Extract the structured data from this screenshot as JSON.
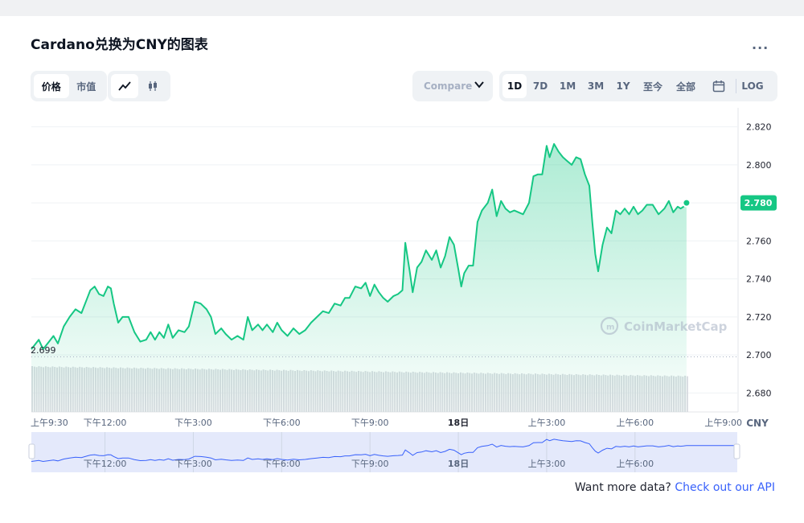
{
  "title": "Cardano兑换为CNY的图表",
  "more_label": "...",
  "metric_tabs": [
    {
      "label": "价格",
      "active": true
    },
    {
      "label": "市值",
      "active": false
    }
  ],
  "chart_type_buttons": [
    {
      "icon": "line-chart-icon",
      "active": true
    },
    {
      "icon": "candlestick-icon",
      "active": false
    }
  ],
  "compare_label": "Compare",
  "range_tabs": [
    {
      "label": "1D",
      "active": true
    },
    {
      "label": "7D",
      "active": false
    },
    {
      "label": "1M",
      "active": false
    },
    {
      "label": "3M",
      "active": false
    },
    {
      "label": "1Y",
      "active": false
    },
    {
      "label": "至今",
      "active": false
    },
    {
      "label": "全部",
      "active": false
    }
  ],
  "calendar_icon": "calendar-icon",
  "log_label": "LOG",
  "watermark": "CoinMarketCap",
  "footer": {
    "prefix": "Want more data?",
    "link": "Check out our API"
  },
  "colors": {
    "line": "#16c784",
    "price_badge": "#16c784",
    "volume": "#d9dce1",
    "navigator_fill": "#e4e9fb",
    "navigator_line": "#3861fb",
    "link": "#3861fb"
  },
  "chart_data": {
    "type": "area",
    "currency": "CNY",
    "y_ticks": [
      2.68,
      2.7,
      2.72,
      2.74,
      2.76,
      2.78,
      2.8,
      2.82
    ],
    "y_tick_labels": [
      "2.680",
      "2.700",
      "2.720",
      "2.740",
      "2.760",
      "2.780",
      "2.800",
      "2.820"
    ],
    "ylim": [
      2.67,
      2.83
    ],
    "start_value": 2.699,
    "start_value_label": "2.699",
    "current_value": 2.78,
    "current_value_label": "2.780",
    "x_ticks": [
      {
        "label": "上午9:30",
        "hours": 0,
        "bold": false
      },
      {
        "label": "下午12:00",
        "hours": 2.5,
        "bold": false
      },
      {
        "label": "下午3:00",
        "hours": 5.5,
        "bold": false
      },
      {
        "label": "下午6:00",
        "hours": 8.5,
        "bold": false
      },
      {
        "label": "下午9:00",
        "hours": 11.5,
        "bold": false
      },
      {
        "label": "18日",
        "hours": 14.5,
        "bold": true
      },
      {
        "label": "上午3:00",
        "hours": 17.5,
        "bold": false
      },
      {
        "label": "上午6:00",
        "hours": 20.5,
        "bold": false
      },
      {
        "label": "上午9:00",
        "hours": 23.5,
        "bold": false
      }
    ],
    "navigator_ticks": [
      {
        "label": "下午12:00",
        "hours": 2.5
      },
      {
        "label": "下午3:00",
        "hours": 5.5
      },
      {
        "label": "下午6:00",
        "hours": 8.5
      },
      {
        "label": "下午9:00",
        "hours": 11.5
      },
      {
        "label": "18日",
        "hours": 14.5
      },
      {
        "label": "上午3:00",
        "hours": 17.5
      },
      {
        "label": "上午6:00",
        "hours": 20.5
      }
    ],
    "series": [
      {
        "points": [
          [
            0,
            2.703
          ],
          [
            0.25,
            2.708
          ],
          [
            0.4,
            2.703
          ],
          [
            0.6,
            2.707
          ],
          [
            0.75,
            2.71
          ],
          [
            0.9,
            2.706
          ],
          [
            1.1,
            2.715
          ],
          [
            1.3,
            2.72
          ],
          [
            1.5,
            2.724
          ],
          [
            1.7,
            2.722
          ],
          [
            1.9,
            2.73
          ],
          [
            2.0,
            2.734
          ],
          [
            2.15,
            2.736
          ],
          [
            2.3,
            2.732
          ],
          [
            2.45,
            2.731
          ],
          [
            2.6,
            2.736
          ],
          [
            2.7,
            2.735
          ],
          [
            2.8,
            2.727
          ],
          [
            2.95,
            2.717
          ],
          [
            3.1,
            2.72
          ],
          [
            3.3,
            2.72
          ],
          [
            3.5,
            2.712
          ],
          [
            3.7,
            2.707
          ],
          [
            3.9,
            2.708
          ],
          [
            4.05,
            2.712
          ],
          [
            4.2,
            2.708
          ],
          [
            4.35,
            2.712
          ],
          [
            4.5,
            2.709
          ],
          [
            4.65,
            2.716
          ],
          [
            4.8,
            2.709
          ],
          [
            5.0,
            2.713
          ],
          [
            5.2,
            2.712
          ],
          [
            5.35,
            2.715
          ],
          [
            5.55,
            2.728
          ],
          [
            5.75,
            2.727
          ],
          [
            5.95,
            2.724
          ],
          [
            6.1,
            2.72
          ],
          [
            6.25,
            2.711
          ],
          [
            6.45,
            2.714
          ],
          [
            6.6,
            2.711
          ],
          [
            6.8,
            2.708
          ],
          [
            7.0,
            2.71
          ],
          [
            7.2,
            2.708
          ],
          [
            7.35,
            2.72
          ],
          [
            7.5,
            2.713
          ],
          [
            7.7,
            2.716
          ],
          [
            7.85,
            2.713
          ],
          [
            8.0,
            2.716
          ],
          [
            8.2,
            2.712
          ],
          [
            8.35,
            2.717
          ],
          [
            8.5,
            2.713
          ],
          [
            8.7,
            2.71
          ],
          [
            8.9,
            2.714
          ],
          [
            9.1,
            2.711
          ],
          [
            9.3,
            2.713
          ],
          [
            9.5,
            2.717
          ],
          [
            9.7,
            2.72
          ],
          [
            9.9,
            2.723
          ],
          [
            10.1,
            2.722
          ],
          [
            10.3,
            2.727
          ],
          [
            10.5,
            2.726
          ],
          [
            10.65,
            2.73
          ],
          [
            10.8,
            2.73
          ],
          [
            11.0,
            2.736
          ],
          [
            11.2,
            2.735
          ],
          [
            11.35,
            2.738
          ],
          [
            11.5,
            2.731
          ],
          [
            11.65,
            2.737
          ],
          [
            11.8,
            2.733
          ],
          [
            11.95,
            2.73
          ],
          [
            12.1,
            2.728
          ],
          [
            12.3,
            2.731
          ],
          [
            12.45,
            2.732
          ],
          [
            12.6,
            2.734
          ],
          [
            12.7,
            2.759
          ],
          [
            12.85,
            2.744
          ],
          [
            12.95,
            2.733
          ],
          [
            13.1,
            2.746
          ],
          [
            13.25,
            2.749
          ],
          [
            13.4,
            2.755
          ],
          [
            13.6,
            2.75
          ],
          [
            13.75,
            2.755
          ],
          [
            13.9,
            2.746
          ],
          [
            14.05,
            2.752
          ],
          [
            14.2,
            2.762
          ],
          [
            14.35,
            2.758
          ],
          [
            14.5,
            2.745
          ],
          [
            14.6,
            2.736
          ],
          [
            14.7,
            2.743
          ],
          [
            14.85,
            2.747
          ],
          [
            15.0,
            2.747
          ],
          [
            15.15,
            2.77
          ],
          [
            15.3,
            2.776
          ],
          [
            15.5,
            2.78
          ],
          [
            15.65,
            2.787
          ],
          [
            15.8,
            2.773
          ],
          [
            15.95,
            2.781
          ],
          [
            16.1,
            2.777
          ],
          [
            16.25,
            2.775
          ],
          [
            16.4,
            2.776
          ],
          [
            16.55,
            2.775
          ],
          [
            16.7,
            2.774
          ],
          [
            16.9,
            2.78
          ],
          [
            17.05,
            2.794
          ],
          [
            17.2,
            2.795
          ],
          [
            17.35,
            2.795
          ],
          [
            17.5,
            2.81
          ],
          [
            17.6,
            2.804
          ],
          [
            17.75,
            2.811
          ],
          [
            17.9,
            2.807
          ],
          [
            18.05,
            2.804
          ],
          [
            18.2,
            2.802
          ],
          [
            18.35,
            2.8
          ],
          [
            18.5,
            2.804
          ],
          [
            18.65,
            2.803
          ],
          [
            18.8,
            2.795
          ],
          [
            18.95,
            2.789
          ],
          [
            19.05,
            2.77
          ],
          [
            19.15,
            2.753
          ],
          [
            19.25,
            2.744
          ],
          [
            19.4,
            2.758
          ],
          [
            19.55,
            2.767
          ],
          [
            19.7,
            2.764
          ],
          [
            19.85,
            2.776
          ],
          [
            20.0,
            2.774
          ],
          [
            20.15,
            2.777
          ],
          [
            20.3,
            2.774
          ],
          [
            20.45,
            2.778
          ],
          [
            20.6,
            2.774
          ],
          [
            20.75,
            2.776
          ],
          [
            20.9,
            2.779
          ],
          [
            21.1,
            2.779
          ],
          [
            21.3,
            2.774
          ],
          [
            21.5,
            2.777
          ],
          [
            21.65,
            2.781
          ],
          [
            21.8,
            2.775
          ],
          [
            21.95,
            2.778
          ],
          [
            22.05,
            2.777
          ],
          [
            22.15,
            2.778
          ],
          [
            22.25,
            2.78
          ]
        ]
      }
    ]
  }
}
